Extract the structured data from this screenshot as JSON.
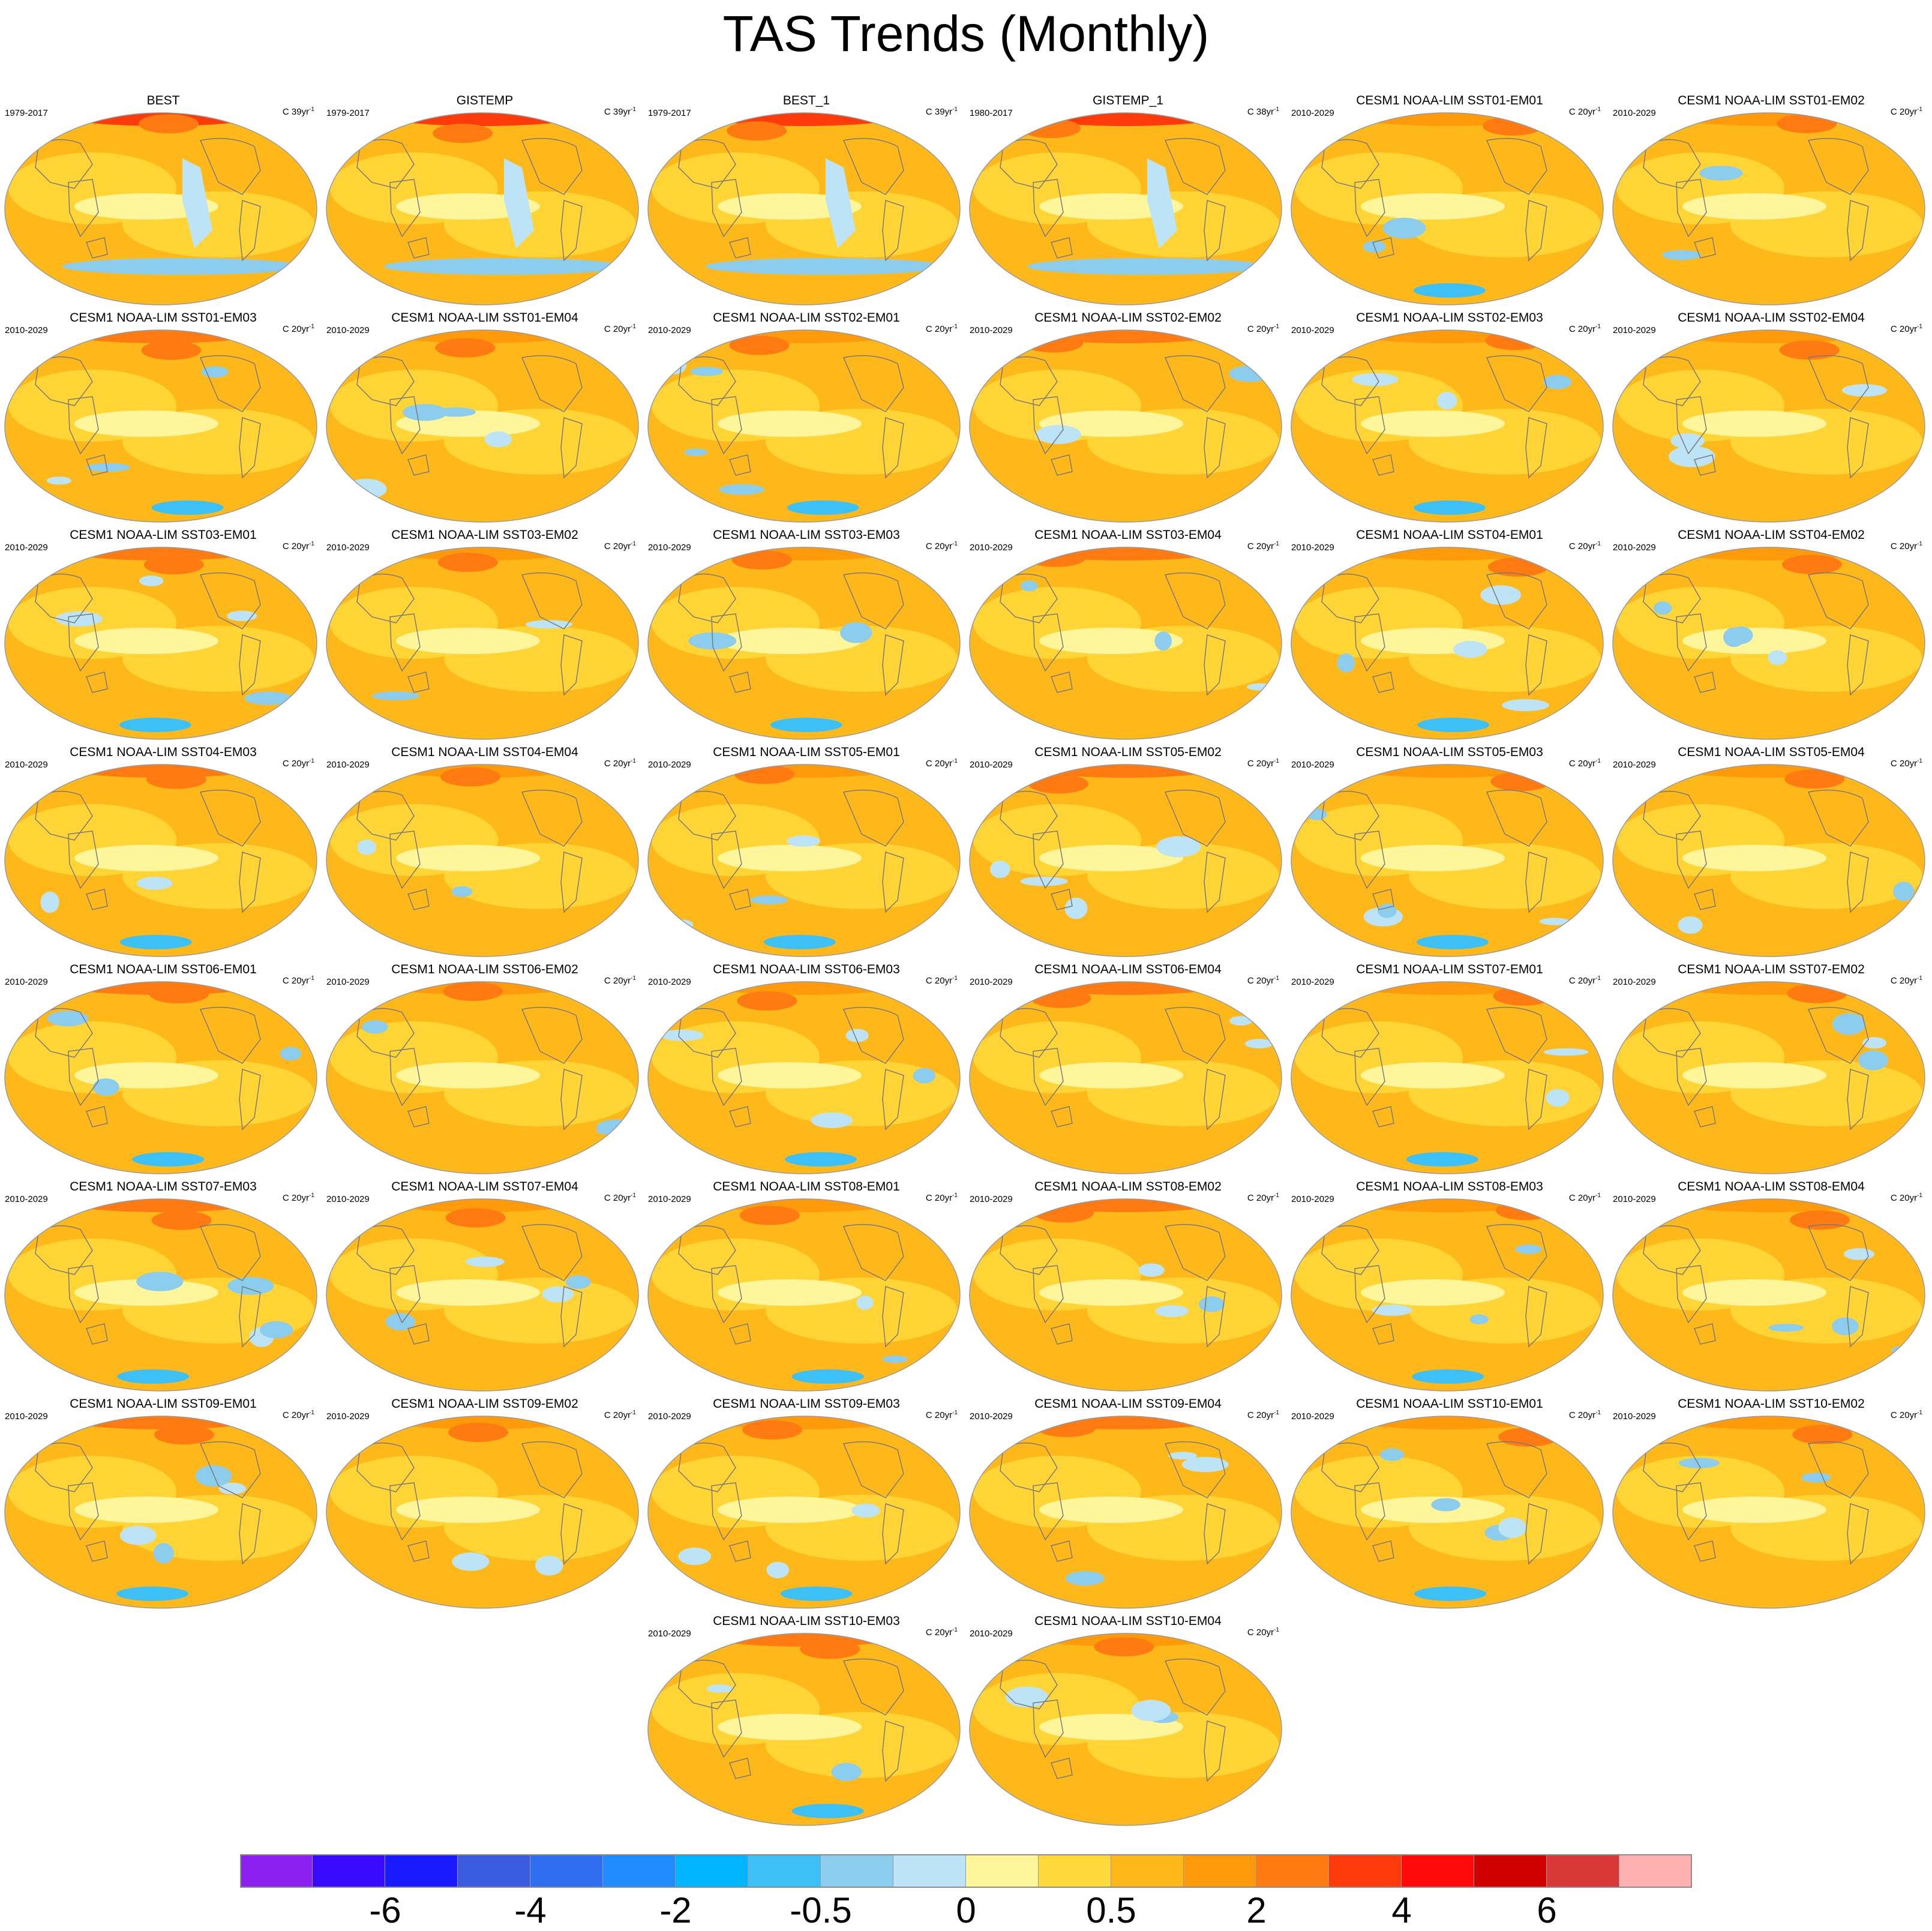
{
  "chart_data": {
    "type": "heatmap",
    "title": "TAS Trends (Monthly)",
    "panels": [
      {
        "title": "BEST",
        "years": "1979-2017",
        "units": "C 39yr",
        "units_sup": "-1"
      },
      {
        "title": "GISTEMP",
        "years": "1979-2017",
        "units": "C 39yr",
        "units_sup": "-1"
      },
      {
        "title": "BEST_1",
        "years": "1979-2017",
        "units": "C 39yr",
        "units_sup": "-1"
      },
      {
        "title": "GISTEMP_1",
        "years": "1980-2017",
        "units": "C 38yr",
        "units_sup": "-1"
      },
      {
        "title": "CESM1 NOAA-LIM SST01-EM01",
        "years": "2010-2029",
        "units": "C 20yr",
        "units_sup": "-1"
      },
      {
        "title": "CESM1 NOAA-LIM SST01-EM02",
        "years": "2010-2029",
        "units": "C 20yr",
        "units_sup": "-1"
      },
      {
        "title": "CESM1 NOAA-LIM SST01-EM03",
        "years": "2010-2029",
        "units": "C 20yr",
        "units_sup": "-1"
      },
      {
        "title": "CESM1 NOAA-LIM SST01-EM04",
        "years": "2010-2029",
        "units": "C 20yr",
        "units_sup": "-1"
      },
      {
        "title": "CESM1 NOAA-LIM SST02-EM01",
        "years": "2010-2029",
        "units": "C 20yr",
        "units_sup": "-1"
      },
      {
        "title": "CESM1 NOAA-LIM SST02-EM02",
        "years": "2010-2029",
        "units": "C 20yr",
        "units_sup": "-1"
      },
      {
        "title": "CESM1 NOAA-LIM SST02-EM03",
        "years": "2010-2029",
        "units": "C 20yr",
        "units_sup": "-1"
      },
      {
        "title": "CESM1 NOAA-LIM SST02-EM04",
        "years": "2010-2029",
        "units": "C 20yr",
        "units_sup": "-1"
      },
      {
        "title": "CESM1 NOAA-LIM SST03-EM01",
        "years": "2010-2029",
        "units": "C 20yr",
        "units_sup": "-1"
      },
      {
        "title": "CESM1 NOAA-LIM SST03-EM02",
        "years": "2010-2029",
        "units": "C 20yr",
        "units_sup": "-1"
      },
      {
        "title": "CESM1 NOAA-LIM SST03-EM03",
        "years": "2010-2029",
        "units": "C 20yr",
        "units_sup": "-1"
      },
      {
        "title": "CESM1 NOAA-LIM SST03-EM04",
        "years": "2010-2029",
        "units": "C 20yr",
        "units_sup": "-1"
      },
      {
        "title": "CESM1 NOAA-LIM SST04-EM01",
        "years": "2010-2029",
        "units": "C 20yr",
        "units_sup": "-1"
      },
      {
        "title": "CESM1 NOAA-LIM SST04-EM02",
        "years": "2010-2029",
        "units": "C 20yr",
        "units_sup": "-1"
      },
      {
        "title": "CESM1 NOAA-LIM SST04-EM03",
        "years": "2010-2029",
        "units": "C 20yr",
        "units_sup": "-1"
      },
      {
        "title": "CESM1 NOAA-LIM SST04-EM04",
        "years": "2010-2029",
        "units": "C 20yr",
        "units_sup": "-1"
      },
      {
        "title": "CESM1 NOAA-LIM SST05-EM01",
        "years": "2010-2029",
        "units": "C 20yr",
        "units_sup": "-1"
      },
      {
        "title": "CESM1 NOAA-LIM SST05-EM02",
        "years": "2010-2029",
        "units": "C 20yr",
        "units_sup": "-1"
      },
      {
        "title": "CESM1 NOAA-LIM SST05-EM03",
        "years": "2010-2029",
        "units": "C 20yr",
        "units_sup": "-1"
      },
      {
        "title": "CESM1 NOAA-LIM SST05-EM04",
        "years": "2010-2029",
        "units": "C 20yr",
        "units_sup": "-1"
      },
      {
        "title": "CESM1 NOAA-LIM SST06-EM01",
        "years": "2010-2029",
        "units": "C 20yr",
        "units_sup": "-1"
      },
      {
        "title": "CESM1 NOAA-LIM SST06-EM02",
        "years": "2010-2029",
        "units": "C 20yr",
        "units_sup": "-1"
      },
      {
        "title": "CESM1 NOAA-LIM SST06-EM03",
        "years": "2010-2029",
        "units": "C 20yr",
        "units_sup": "-1"
      },
      {
        "title": "CESM1 NOAA-LIM SST06-EM04",
        "years": "2010-2029",
        "units": "C 20yr",
        "units_sup": "-1"
      },
      {
        "title": "CESM1 NOAA-LIM SST07-EM01",
        "years": "2010-2029",
        "units": "C 20yr",
        "units_sup": "-1"
      },
      {
        "title": "CESM1 NOAA-LIM SST07-EM02",
        "years": "2010-2029",
        "units": "C 20yr",
        "units_sup": "-1"
      },
      {
        "title": "CESM1 NOAA-LIM SST07-EM03",
        "years": "2010-2029",
        "units": "C 20yr",
        "units_sup": "-1"
      },
      {
        "title": "CESM1 NOAA-LIM SST07-EM04",
        "years": "2010-2029",
        "units": "C 20yr",
        "units_sup": "-1"
      },
      {
        "title": "CESM1 NOAA-LIM SST08-EM01",
        "years": "2010-2029",
        "units": "C 20yr",
        "units_sup": "-1"
      },
      {
        "title": "CESM1 NOAA-LIM SST08-EM02",
        "years": "2010-2029",
        "units": "C 20yr",
        "units_sup": "-1"
      },
      {
        "title": "CESM1 NOAA-LIM SST08-EM03",
        "years": "2010-2029",
        "units": "C 20yr",
        "units_sup": "-1"
      },
      {
        "title": "CESM1 NOAA-LIM SST08-EM04",
        "years": "2010-2029",
        "units": "C 20yr",
        "units_sup": "-1"
      },
      {
        "title": "CESM1 NOAA-LIM SST09-EM01",
        "years": "2010-2029",
        "units": "C 20yr",
        "units_sup": "-1"
      },
      {
        "title": "CESM1 NOAA-LIM SST09-EM02",
        "years": "2010-2029",
        "units": "C 20yr",
        "units_sup": "-1"
      },
      {
        "title": "CESM1 NOAA-LIM SST09-EM03",
        "years": "2010-2029",
        "units": "C 20yr",
        "units_sup": "-1"
      },
      {
        "title": "CESM1 NOAA-LIM SST09-EM04",
        "years": "2010-2029",
        "units": "C 20yr",
        "units_sup": "-1"
      },
      {
        "title": "CESM1 NOAA-LIM SST10-EM01",
        "years": "2010-2029",
        "units": "C 20yr",
        "units_sup": "-1"
      },
      {
        "title": "CESM1 NOAA-LIM SST10-EM02",
        "years": "2010-2029",
        "units": "C 20yr",
        "units_sup": "-1"
      },
      {
        "title": "CESM1 NOAA-LIM SST10-EM03",
        "years": "2010-2029",
        "units": "C 20yr",
        "units_sup": "-1"
      },
      {
        "title": "CESM1 NOAA-LIM SST10-EM04",
        "years": "2010-2029",
        "units": "C 20yr",
        "units_sup": "-1"
      }
    ],
    "colorbar": {
      "colors": [
        "#8a1ff0",
        "#3a0aff",
        "#1a1aff",
        "#3a5ae0",
        "#2e6ff2",
        "#1e8cff",
        "#00b4ff",
        "#3cc0f5",
        "#8ccdee",
        "#bde3f6",
        "#fff59a",
        "#ffd83a",
        "#ffb81a",
        "#ff9b0a",
        "#ff7a10",
        "#ff3a0a",
        "#ff0a0a",
        "#d10000",
        "#d83838",
        "#ffb0b0"
      ],
      "tick_labels": [
        "-6",
        "-4",
        "-2",
        "-0.5",
        "0",
        "0.5",
        "2",
        "4",
        "6"
      ],
      "tick_boundary_index": [
        2,
        4,
        6,
        8,
        10,
        12,
        14,
        16,
        18
      ]
    }
  }
}
